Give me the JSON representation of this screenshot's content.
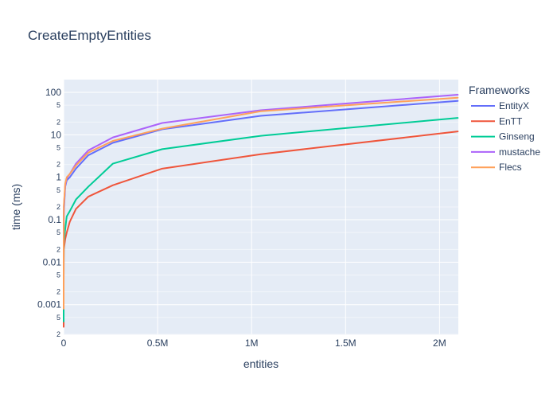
{
  "chart_data": {
    "type": "line",
    "title": "CreateEmptyEntities",
    "xlabel": "entities",
    "ylabel": "time (ms)",
    "y_scale": "log",
    "xlim": [
      0,
      2100000
    ],
    "ylim": [
      0.0002,
      200
    ],
    "legend_title": "Frameworks",
    "legend_position": "right",
    "grid": true,
    "plot_background": "#e5ecf6",
    "x_ticks": [
      {
        "value": 0,
        "label": "0"
      },
      {
        "value": 500000,
        "label": "0.5M"
      },
      {
        "value": 1000000,
        "label": "1M"
      },
      {
        "value": 1500000,
        "label": "1.5M"
      },
      {
        "value": 2000000,
        "label": "2M"
      }
    ],
    "y_major_ticks": [
      {
        "value": 0.001,
        "label": "0.001"
      },
      {
        "value": 0.01,
        "label": "0.01"
      },
      {
        "value": 0.1,
        "label": "0.1"
      },
      {
        "value": 1,
        "label": "1"
      },
      {
        "value": 10,
        "label": "10"
      },
      {
        "value": 100,
        "label": "100"
      }
    ],
    "y_minor_ticks": [
      {
        "value": 0.0002,
        "label": "2"
      },
      {
        "value": 0.0005,
        "label": "5"
      },
      {
        "value": 0.002,
        "label": "2"
      },
      {
        "value": 0.005,
        "label": "5"
      },
      {
        "value": 0.02,
        "label": "2"
      },
      {
        "value": 0.05,
        "label": "5"
      },
      {
        "value": 0.2,
        "label": "2"
      },
      {
        "value": 0.5,
        "label": "5"
      },
      {
        "value": 2,
        "label": "2"
      },
      {
        "value": 5,
        "label": "5"
      },
      {
        "value": 20,
        "label": "2"
      },
      {
        "value": 50,
        "label": "5"
      }
    ],
    "x": [
      1,
      8,
      64,
      512,
      1024,
      8192,
      16384,
      32768,
      65536,
      131072,
      262144,
      524288,
      1048576,
      2097152
    ],
    "series": [
      {
        "name": "EntityX",
        "color": "#636efa",
        "values": [
          0.0006,
          0.003,
          0.015,
          0.08,
          0.15,
          0.6,
          0.85,
          1.0,
          1.6,
          3.3,
          6.5,
          13.5,
          28,
          63
        ]
      },
      {
        "name": "EnTT",
        "color": "#ef553b",
        "values": [
          0.0003,
          0.001,
          0.004,
          0.012,
          0.02,
          0.035,
          0.05,
          0.09,
          0.18,
          0.35,
          0.65,
          1.6,
          3.5,
          12
        ]
      },
      {
        "name": "Ginseng",
        "color": "#00cc96",
        "values": [
          0.0004,
          0.002,
          0.008,
          0.02,
          0.03,
          0.06,
          0.12,
          0.16,
          0.3,
          0.6,
          2.1,
          4.6,
          9.5,
          25
        ]
      },
      {
        "name": "mustache",
        "color": "#ab63fa",
        "values": [
          0.0008,
          0.004,
          0.02,
          0.1,
          0.2,
          0.65,
          0.95,
          1.2,
          2.1,
          4.3,
          8.7,
          19,
          38,
          88
        ]
      },
      {
        "name": "Flecs",
        "color": "#ffa15a",
        "values": [
          0.0008,
          0.004,
          0.02,
          0.1,
          0.22,
          0.7,
          1.0,
          1.2,
          1.9,
          3.8,
          7.2,
          14,
          36,
          75
        ]
      }
    ]
  }
}
